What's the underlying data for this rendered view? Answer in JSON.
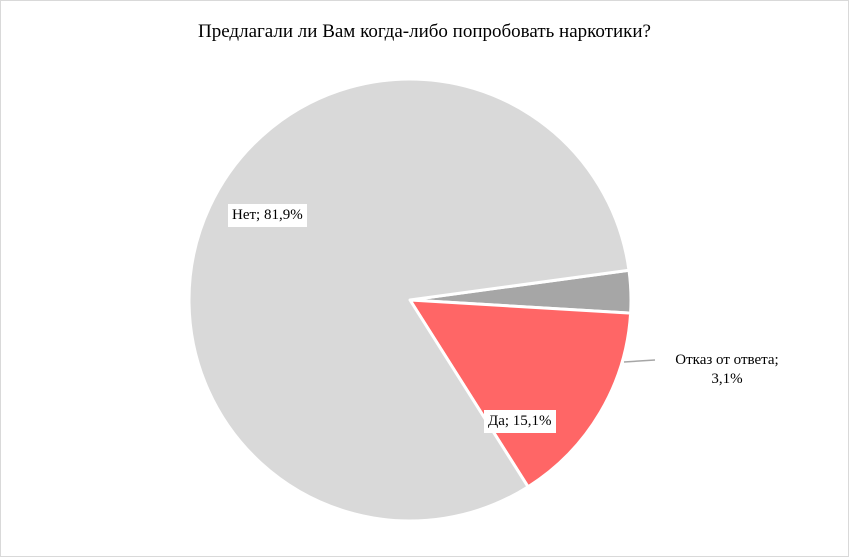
{
  "chart_data": {
    "type": "pie",
    "title": "Предлагали ли Вам когда-либо попробовать наркотики?",
    "slices": [
      {
        "label": "Да",
        "value": 15.1,
        "display": "Да; 15,1%",
        "color": "#ff6666"
      },
      {
        "label": "Отказ от ответа",
        "value": 3.1,
        "display_line1": "Отказ от ответа;",
        "display_line2": "3,1%",
        "color": "#a6a6a6"
      },
      {
        "label": "Нет",
        "value": 81.9,
        "display": "Нет; 81,9%",
        "color": "#d9d9d9"
      }
    ],
    "legend": "none"
  }
}
